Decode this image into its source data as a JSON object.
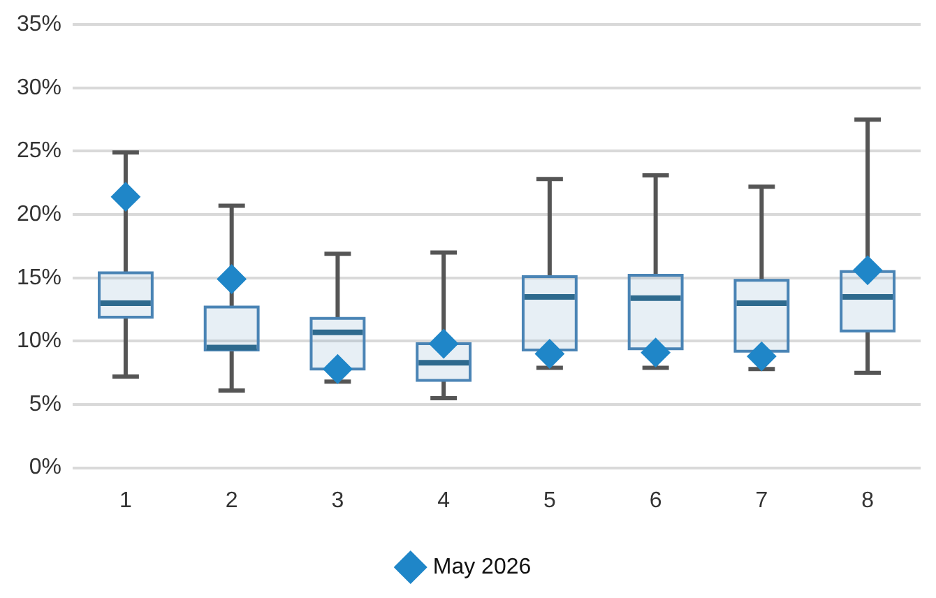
{
  "chart_data": {
    "type": "box",
    "categories": [
      "1",
      "2",
      "3",
      "4",
      "5",
      "6",
      "7",
      "8"
    ],
    "color": "#4a84b5",
    "boxes": [
      {
        "low": 7.2,
        "q1": 11.9,
        "median": 13.0,
        "q3": 15.4,
        "high": 24.9
      },
      {
        "low": 6.1,
        "q1": 9.3,
        "median": 9.5,
        "q3": 12.7,
        "high": 20.7
      },
      {
        "low": 6.8,
        "q1": 7.8,
        "median": 10.7,
        "q3": 11.8,
        "high": 16.9
      },
      {
        "low": 5.5,
        "q1": 6.9,
        "median": 8.3,
        "q3": 9.8,
        "high": 17.0
      },
      {
        "low": 7.9,
        "q1": 9.3,
        "median": 13.5,
        "q3": 15.1,
        "high": 22.8
      },
      {
        "low": 7.9,
        "q1": 9.4,
        "median": 13.4,
        "q3": 15.2,
        "high": 23.1
      },
      {
        "low": 7.8,
        "q1": 9.2,
        "median": 13.0,
        "q3": 14.8,
        "high": 22.2
      },
      {
        "low": 7.5,
        "q1": 10.8,
        "median": 13.5,
        "q3": 15.5,
        "high": 27.5
      }
    ],
    "series": [
      {
        "name": "May 2026",
        "type": "scatter",
        "color": "#1f86c8",
        "x": [
          "1",
          "2",
          "3",
          "4",
          "5",
          "6",
          "7",
          "8"
        ],
        "values": [
          21.4,
          14.9,
          7.8,
          9.8,
          9.0,
          9.1,
          8.8,
          15.6
        ]
      }
    ],
    "marker": "diamond",
    "ylim": [
      0,
      35
    ],
    "yticks": [
      {
        "value": 0,
        "label": "0%"
      },
      {
        "value": 5,
        "label": "5%"
      },
      {
        "value": 10,
        "label": "10%"
      },
      {
        "value": 15,
        "label": "15%"
      },
      {
        "value": 20,
        "label": "20%"
      },
      {
        "value": 25,
        "label": "25%"
      },
      {
        "value": 30,
        "label": "30%"
      },
      {
        "value": 35,
        "label": "35%"
      }
    ],
    "grid": "y",
    "legend": "bottom"
  }
}
